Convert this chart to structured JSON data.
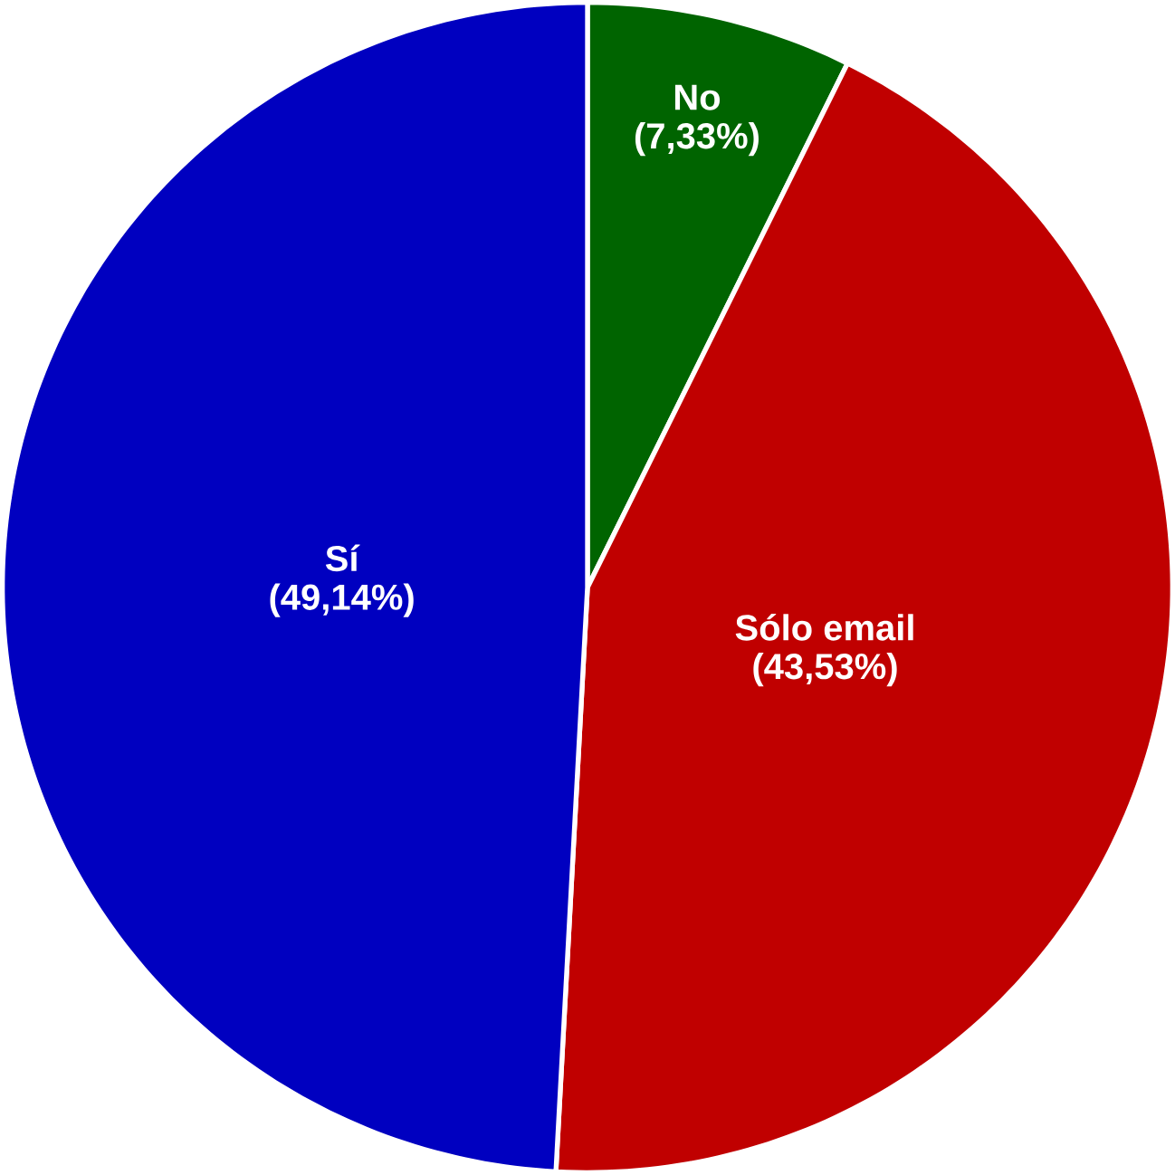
{
  "chart_data": {
    "type": "pie",
    "categories": [
      "No",
      "Sólo email",
      "Sí"
    ],
    "values": [
      7.33,
      43.53,
      49.14
    ],
    "colors": [
      "#006400",
      "#c00000",
      "#0000c0"
    ],
    "value_labels": [
      "(7,33%)",
      "(43,53%)",
      "(49,14%)"
    ]
  }
}
